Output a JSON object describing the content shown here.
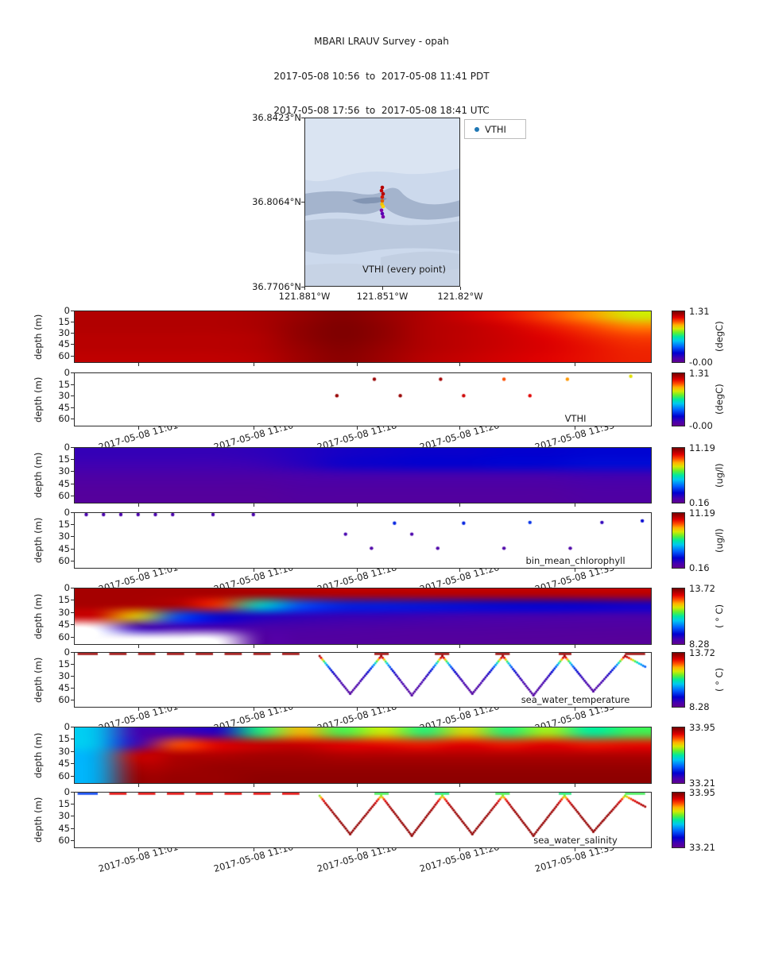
{
  "title": {
    "line1": "MBARI LRAUV Survey - opah",
    "line2": "2017-05-08 10:56  to  2017-05-08 11:41 PDT",
    "line3": "2017-05-08 17:56  to  2017-05-08 18:41 UTC"
  },
  "map": {
    "legend_label": "VTHI",
    "legend_dot_color": "#1f77b4",
    "annotation": "VTHI (every point)",
    "lat_ticks": [
      "36.8423°N",
      "36.8064°N",
      "36.7706°N"
    ],
    "lon_ticks": [
      "121.881°W",
      "121.851°W",
      "121.82°W"
    ],
    "track_points": [
      {
        "x": 0.5,
        "y": 0.413,
        "color": "#b40000"
      },
      {
        "x": 0.495,
        "y": 0.432,
        "color": "#c80000"
      },
      {
        "x": 0.505,
        "y": 0.451,
        "color": "#b40000"
      },
      {
        "x": 0.5,
        "y": 0.47,
        "color": "#d21800"
      },
      {
        "x": 0.5,
        "y": 0.493,
        "color": "#e05a00"
      },
      {
        "x": 0.498,
        "y": 0.512,
        "color": "#f0c000"
      },
      {
        "x": 0.505,
        "y": 0.526,
        "color": "#ffd500"
      },
      {
        "x": 0.495,
        "y": 0.549,
        "color": "#8000a8"
      },
      {
        "x": 0.5,
        "y": 0.568,
        "color": "#5a00b4"
      },
      {
        "x": 0.505,
        "y": 0.587,
        "color": "#7800a8"
      }
    ]
  },
  "chart_data": {
    "type": "heatmap",
    "description": "Depth-time sections and point measurements from LRAUV opah: VTHI, bin_mean_chlorophyll, sea_water_temperature, sea_water_salinity",
    "time_axis": {
      "t_start": "2017-05-08 10:56",
      "t_end": "2017-05-08 11:41",
      "tick_labels": [
        "2017-05-08 11:01",
        "2017-05-08 11:10",
        "2017-05-08 11:18",
        "2017-05-08 11:26",
        "2017-05-08 11:35"
      ],
      "tick_positions": [
        0.111,
        0.311,
        0.489,
        0.667,
        0.867
      ]
    },
    "depth_axis": {
      "label": "depth (m)",
      "ticks": [
        0,
        15,
        30,
        45,
        60
      ],
      "max": 70
    },
    "colormap": {
      "stops": [
        [
          0,
          "#60008f"
        ],
        [
          0.08,
          "#4400b0"
        ],
        [
          0.18,
          "#0000d0"
        ],
        [
          0.3,
          "#0060ff"
        ],
        [
          0.42,
          "#00c8f0"
        ],
        [
          0.5,
          "#00e8a0"
        ],
        [
          0.58,
          "#60f030"
        ],
        [
          0.66,
          "#d8e800"
        ],
        [
          0.73,
          "#ffb000"
        ],
        [
          0.8,
          "#ff5000"
        ],
        [
          0.88,
          "#e00000"
        ],
        [
          0.95,
          "#a00000"
        ],
        [
          1,
          "#780000"
        ]
      ]
    },
    "panels": [
      {
        "id": "vthi-section",
        "kind": "heatmap",
        "label": "",
        "unit": "(degC)",
        "vmin": 0.0,
        "vmax": 1.31,
        "cb_max": "1.31",
        "cb_min": "-0.00",
        "grid_depths": [
          7,
          21,
          35,
          49,
          63
        ],
        "grid": [
          [
            1.22,
            1.22,
            1.22,
            1.22,
            1.23,
            1.26,
            1.29,
            1.26,
            1.22,
            1.18,
            1.13,
            1.06,
            0.98,
            0.86
          ],
          [
            1.22,
            1.22,
            1.22,
            1.22,
            1.23,
            1.27,
            1.3,
            1.27,
            1.22,
            1.2,
            1.17,
            1.12,
            1.06,
            1.0
          ],
          [
            1.21,
            1.21,
            1.21,
            1.21,
            1.22,
            1.27,
            1.3,
            1.27,
            1.22,
            1.2,
            1.18,
            1.15,
            1.11,
            1.07
          ],
          [
            1.21,
            1.21,
            1.21,
            1.21,
            1.22,
            1.26,
            1.29,
            1.26,
            1.22,
            1.2,
            1.18,
            1.16,
            1.13,
            1.1
          ],
          [
            1.2,
            1.2,
            1.2,
            1.2,
            1.21,
            1.25,
            1.28,
            1.25,
            1.21,
            1.19,
            1.17,
            1.15,
            1.13,
            1.11
          ]
        ]
      },
      {
        "id": "vthi-points",
        "kind": "scatter",
        "label": "VTHI",
        "unit": "(degC)",
        "vmin": 0.0,
        "vmax": 1.31,
        "cb_max": "1.31",
        "cb_min": "-0.00",
        "points": [
          {
            "x": 0.52,
            "d": 8,
            "v": 1.26
          },
          {
            "x": 0.635,
            "d": 8,
            "v": 1.24
          },
          {
            "x": 0.745,
            "d": 8,
            "v": 1.05
          },
          {
            "x": 0.855,
            "d": 8,
            "v": 0.98
          },
          {
            "x": 0.965,
            "d": 4,
            "v": 0.88
          },
          {
            "x": 0.455,
            "d": 30,
            "v": 1.26
          },
          {
            "x": 0.565,
            "d": 30,
            "v": 1.26
          },
          {
            "x": 0.675,
            "d": 30,
            "v": 1.18
          },
          {
            "x": 0.79,
            "d": 30,
            "v": 1.15
          }
        ]
      },
      {
        "id": "chlorophyll-section",
        "kind": "heatmap",
        "label": "",
        "unit": "(ug/l)",
        "vmin": 0.16,
        "vmax": 11.19,
        "cb_max": "11.19",
        "cb_min": "0.16",
        "grid_depths": [
          7,
          21,
          35,
          49,
          63
        ],
        "grid": [
          [
            1.3,
            1.3,
            1.3,
            1.3,
            1.4,
            1.6,
            1.8,
            1.9,
            2.0,
            2.0,
            2.1,
            2.1,
            2.2,
            2.2
          ],
          [
            1.1,
            1.1,
            1.1,
            1.1,
            1.2,
            1.5,
            1.9,
            2.0,
            2.1,
            2.1,
            2.2,
            2.2,
            2.3,
            2.3
          ],
          [
            0.8,
            0.8,
            0.8,
            0.8,
            0.8,
            0.9,
            1.0,
            1.0,
            1.0,
            1.0,
            1.0,
            1.0,
            1.1,
            1.1
          ],
          [
            0.6,
            0.6,
            0.6,
            0.6,
            0.6,
            0.7,
            0.7,
            0.7,
            0.7,
            0.7,
            0.7,
            0.7,
            0.8,
            0.8
          ],
          [
            0.5,
            0.5,
            0.5,
            0.5,
            0.5,
            0.6,
            0.6,
            0.6,
            0.6,
            0.6,
            0.6,
            0.6,
            0.7,
            0.7
          ]
        ]
      },
      {
        "id": "chlorophyll-points",
        "kind": "scatter",
        "label": "bin_mean_chlorophyll",
        "unit": "(ug/l)",
        "vmin": 0.16,
        "vmax": 11.19,
        "cb_max": "11.19",
        "cb_min": "0.16",
        "points": [
          {
            "x": 0.02,
            "d": 2,
            "v": 0.9
          },
          {
            "x": 0.05,
            "d": 2,
            "v": 0.9
          },
          {
            "x": 0.08,
            "d": 2,
            "v": 0.9
          },
          {
            "x": 0.11,
            "d": 2,
            "v": 0.9
          },
          {
            "x": 0.14,
            "d": 2,
            "v": 0.9
          },
          {
            "x": 0.17,
            "d": 2,
            "v": 0.9
          },
          {
            "x": 0.24,
            "d": 2,
            "v": 0.9
          },
          {
            "x": 0.31,
            "d": 2,
            "v": 0.9
          },
          {
            "x": 0.555,
            "d": 13,
            "v": 2.6
          },
          {
            "x": 0.675,
            "d": 13,
            "v": 2.6
          },
          {
            "x": 0.79,
            "d": 12,
            "v": 2.8
          },
          {
            "x": 0.915,
            "d": 12,
            "v": 1.4
          },
          {
            "x": 0.985,
            "d": 10,
            "v": 2.2
          },
          {
            "x": 0.47,
            "d": 27,
            "v": 1.0
          },
          {
            "x": 0.585,
            "d": 27,
            "v": 0.9
          },
          {
            "x": 0.515,
            "d": 45,
            "v": 0.8
          },
          {
            "x": 0.63,
            "d": 45,
            "v": 0.8
          },
          {
            "x": 0.745,
            "d": 45,
            "v": 0.8
          },
          {
            "x": 0.86,
            "d": 45,
            "v": 0.8
          }
        ]
      },
      {
        "id": "temperature-section",
        "kind": "heatmap",
        "label": "",
        "unit": "( ° C)",
        "vmin": 8.28,
        "vmax": 13.72,
        "cb_max": "13.72",
        "cb_min": "8.28",
        "grid_depths": [
          7,
          21,
          35,
          49,
          63
        ],
        "grid": [
          [
            13.42,
            13.42,
            13.4,
            13.4,
            13.38,
            13.35,
            13.32,
            13.32,
            13.3,
            13.3,
            13.3,
            13.3,
            13.28,
            13.28
          ],
          [
            13.4,
            13.38,
            13.35,
            12.8,
            10.8,
            9.8,
            9.5,
            9.45,
            9.4,
            9.35,
            9.3,
            9.28,
            9.22,
            9.15
          ],
          [
            13.2,
            12.0,
            9.8,
            9.3,
            9.0,
            8.88,
            8.82,
            8.8,
            8.76,
            8.72,
            8.7,
            8.68,
            8.66,
            8.65
          ],
          [
            null,
            8.8,
            8.75,
            8.68,
            8.62,
            8.6,
            8.58,
            8.56,
            8.55,
            8.54,
            8.53,
            8.52,
            8.51,
            8.5
          ],
          [
            null,
            null,
            null,
            null,
            8.5,
            8.5,
            8.49,
            8.48,
            8.47,
            8.46,
            8.45,
            8.45,
            8.44,
            8.43
          ]
        ]
      },
      {
        "id": "temperature-points",
        "kind": "scatter",
        "label": "sea_water_temperature",
        "unit": "( ° C)",
        "vmin": 8.28,
        "vmax": 13.72,
        "cb_max": "13.72",
        "cb_min": "8.28",
        "dashes": [
          {
            "x0": 0.005,
            "x1": 0.04,
            "d": 1.5,
            "v": 13.5
          },
          {
            "x0": 0.06,
            "x1": 0.09,
            "d": 1.5,
            "v": 13.5
          },
          {
            "x0": 0.11,
            "x1": 0.14,
            "d": 1.5,
            "v": 13.5
          },
          {
            "x0": 0.16,
            "x1": 0.19,
            "d": 1.5,
            "v": 13.5
          },
          {
            "x0": 0.21,
            "x1": 0.24,
            "d": 1.5,
            "v": 13.5
          },
          {
            "x0": 0.26,
            "x1": 0.29,
            "d": 1.5,
            "v": 13.5
          },
          {
            "x0": 0.31,
            "x1": 0.34,
            "d": 1.5,
            "v": 13.5
          },
          {
            "x0": 0.36,
            "x1": 0.39,
            "d": 1.5,
            "v": 13.5
          },
          {
            "x0": 0.52,
            "x1": 0.545,
            "d": 1.5,
            "v": 13.5
          },
          {
            "x0": 0.625,
            "x1": 0.65,
            "d": 1.5,
            "v": 13.5
          },
          {
            "x0": 0.73,
            "x1": 0.755,
            "d": 1.5,
            "v": 13.5
          },
          {
            "x0": 0.84,
            "x1": 0.862,
            "d": 1.5,
            "v": 13.5
          },
          {
            "x0": 0.955,
            "x1": 0.99,
            "d": 1.5,
            "v": 13.5
          }
        ],
        "tracks": [
          {
            "vertices": [
              [
                0.425,
                4
              ],
              [
                0.478,
                53
              ],
              [
                0.532,
                4
              ],
              [
                0.585,
                55
              ],
              [
                0.638,
                4
              ],
              [
                0.69,
                53
              ],
              [
                0.743,
                4
              ],
              [
                0.796,
                55
              ],
              [
                0.85,
                4
              ],
              [
                0.9,
                50
              ],
              [
                0.955,
                4
              ],
              [
                0.99,
                18
              ]
            ]
          }
        ],
        "profile": [
          [
            0,
            13.55
          ],
          [
            4,
            13.45
          ],
          [
            7,
            12.9
          ],
          [
            10,
            11.6
          ],
          [
            14,
            10.5
          ],
          [
            20,
            9.6
          ],
          [
            28,
            9.0
          ],
          [
            38,
            8.7
          ],
          [
            50,
            8.55
          ],
          [
            70,
            8.45
          ]
        ]
      },
      {
        "id": "salinity-section",
        "kind": "heatmap",
        "label": "",
        "unit": "",
        "vmin": 33.21,
        "vmax": 33.95,
        "cb_max": "33.95",
        "cb_min": "33.21",
        "grid_depths": [
          7,
          21,
          35,
          49,
          63
        ],
        "grid": [
          [
            33.52,
            33.27,
            33.27,
            33.3,
            33.6,
            33.75,
            33.62,
            33.7,
            33.6,
            33.72,
            33.6,
            33.68,
            33.58,
            33.62
          ],
          [
            33.52,
            33.28,
            33.8,
            33.86,
            33.88,
            33.88,
            33.86,
            33.85,
            33.84,
            33.86,
            33.84,
            33.86,
            33.84,
            33.85
          ],
          [
            33.5,
            33.88,
            33.9,
            33.9,
            33.91,
            33.91,
            33.9,
            33.9,
            33.9,
            33.9,
            33.9,
            33.9,
            33.9,
            33.9
          ],
          [
            33.5,
            33.9,
            33.91,
            33.92,
            33.92,
            33.92,
            33.92,
            33.92,
            33.92,
            33.92,
            33.92,
            33.92,
            33.92,
            33.92
          ],
          [
            33.5,
            33.92,
            33.92,
            33.92,
            33.93,
            33.93,
            33.93,
            33.93,
            33.93,
            33.93,
            33.93,
            33.93,
            33.93,
            33.93
          ]
        ]
      },
      {
        "id": "salinity-points",
        "kind": "scatter",
        "label": "sea_water_salinity",
        "unit": "",
        "vmin": 33.21,
        "vmax": 33.95,
        "cb_max": "33.95",
        "cb_min": "33.21",
        "dashes": [
          {
            "x0": 0.005,
            "x1": 0.04,
            "d": 1.5,
            "v": 33.4
          },
          {
            "x0": 0.06,
            "x1": 0.09,
            "d": 1.5,
            "v": 33.86
          },
          {
            "x0": 0.11,
            "x1": 0.14,
            "d": 1.5,
            "v": 33.86
          },
          {
            "x0": 0.16,
            "x1": 0.19,
            "d": 1.5,
            "v": 33.86
          },
          {
            "x0": 0.21,
            "x1": 0.24,
            "d": 1.5,
            "v": 33.86
          },
          {
            "x0": 0.26,
            "x1": 0.29,
            "d": 1.5,
            "v": 33.86
          },
          {
            "x0": 0.31,
            "x1": 0.34,
            "d": 1.5,
            "v": 33.86
          },
          {
            "x0": 0.36,
            "x1": 0.39,
            "d": 1.5,
            "v": 33.86
          },
          {
            "x0": 0.52,
            "x1": 0.545,
            "d": 1.5,
            "v": 33.62
          },
          {
            "x0": 0.625,
            "x1": 0.65,
            "d": 1.5,
            "v": 33.6
          },
          {
            "x0": 0.73,
            "x1": 0.755,
            "d": 1.5,
            "v": 33.62
          },
          {
            "x0": 0.84,
            "x1": 0.862,
            "d": 1.5,
            "v": 33.6
          },
          {
            "x0": 0.955,
            "x1": 0.99,
            "d": 1.5,
            "v": 33.62
          }
        ],
        "tracks": [
          {
            "vertices": [
              [
                0.425,
                4
              ],
              [
                0.478,
                53
              ],
              [
                0.532,
                4
              ],
              [
                0.585,
                55
              ],
              [
                0.638,
                4
              ],
              [
                0.69,
                53
              ],
              [
                0.743,
                4
              ],
              [
                0.796,
                55
              ],
              [
                0.85,
                4
              ],
              [
                0.9,
                50
              ],
              [
                0.955,
                4
              ],
              [
                0.99,
                18
              ]
            ]
          }
        ],
        "profile": [
          [
            0,
            33.6
          ],
          [
            4,
            33.66
          ],
          [
            7,
            33.78
          ],
          [
            10,
            33.86
          ],
          [
            16,
            33.9
          ],
          [
            26,
            33.92
          ],
          [
            70,
            33.93
          ]
        ]
      }
    ]
  }
}
